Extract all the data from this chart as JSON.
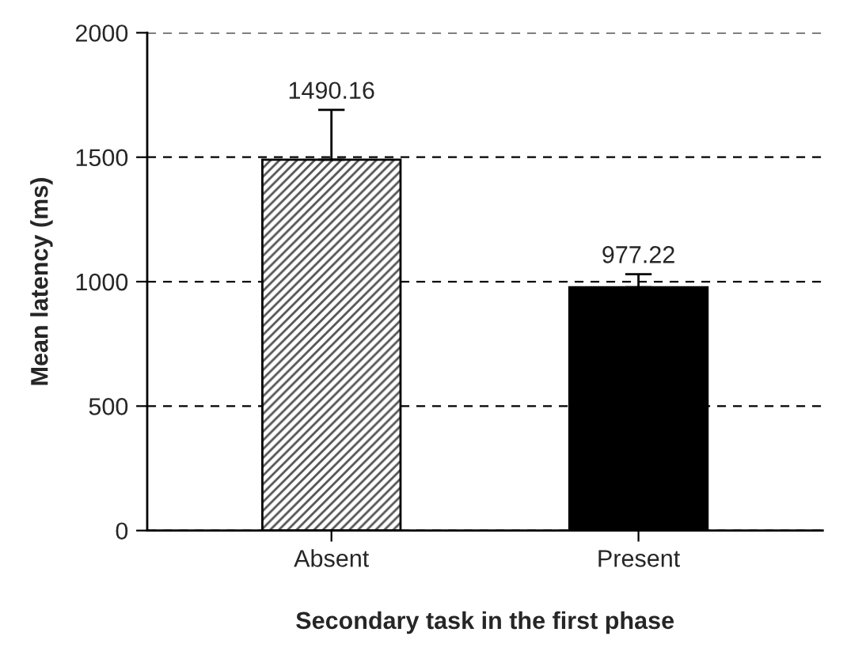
{
  "chart_data": {
    "type": "bar",
    "xlabel": "Secondary task in the first phase",
    "ylabel": "Mean latency (ms)",
    "categories": [
      "Absent",
      "Present"
    ],
    "values": [
      1490.16,
      977.22
    ],
    "colors": [
      "#555555",
      "#000000"
    ],
    "errors": [
      [
        1490.16,
        1690
      ],
      [
        977.22,
        1030
      ]
    ],
    "data_labels": true,
    "ylim": [
      0,
      2000
    ],
    "yticks": [
      0,
      500,
      1000,
      1500,
      2000
    ],
    "grid": "y",
    "legend": false
  }
}
